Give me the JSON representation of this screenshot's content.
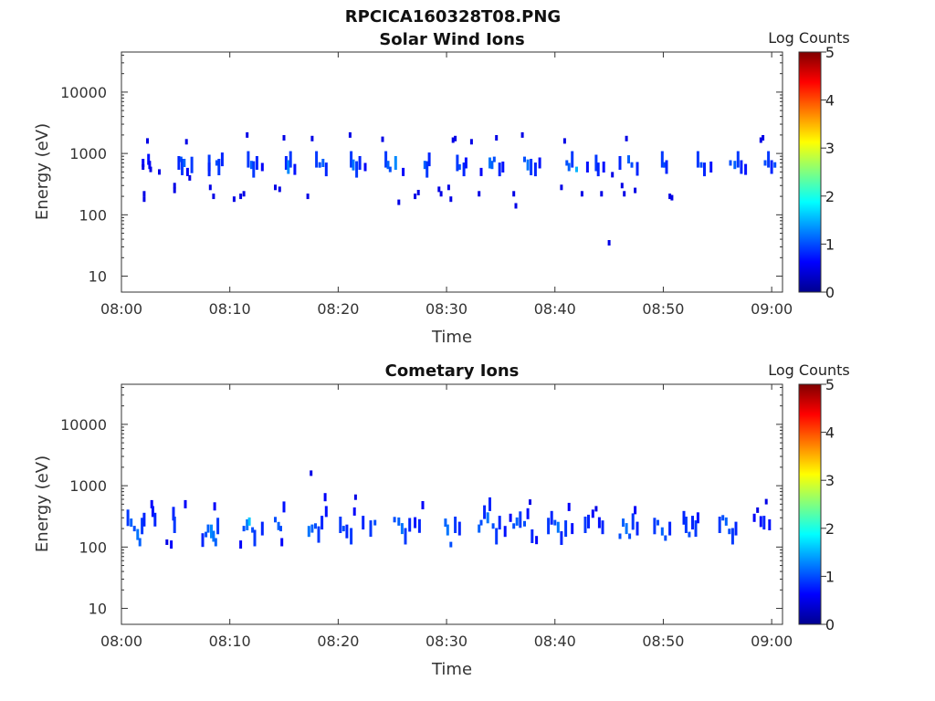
{
  "figure_title": "RPCICA160328T08.PNG",
  "chart_data": [
    {
      "type": "heatmap",
      "title": "Solar Wind Ions",
      "xlabel": "Time",
      "ylabel": "Energy (eV)",
      "x_ticks": [
        "08:00",
        "08:10",
        "08:20",
        "08:30",
        "08:40",
        "08:50",
        "09:00"
      ],
      "y_ticks": [
        "10",
        "100",
        "1000",
        "10000"
      ],
      "y_scale": "log",
      "xlim_minutes": [
        0,
        61
      ],
      "ylim": [
        5.5,
        45000
      ],
      "colorbar_label": "Log Counts",
      "colorbar_ticks": [
        "0",
        "1",
        "2",
        "3",
        "4",
        "5"
      ],
      "colorbar_range": [
        0,
        5
      ],
      "points": [
        [
          2.0,
          700,
          0.6
        ],
        [
          2.0,
          600,
          0.5
        ],
        [
          2.1,
          220,
          0.5
        ],
        [
          2.1,
          180,
          0.5
        ],
        [
          2.4,
          1600,
          0.5
        ],
        [
          2.5,
          800,
          0.7
        ],
        [
          2.6,
          650,
          0.6
        ],
        [
          2.7,
          550,
          0.5
        ],
        [
          3.5,
          500,
          0.5
        ],
        [
          4.9,
          300,
          0.5
        ],
        [
          4.9,
          250,
          0.5
        ],
        [
          5.3,
          700,
          0.8
        ],
        [
          5.5,
          800,
          1.0
        ],
        [
          5.6,
          600,
          0.9
        ],
        [
          5.8,
          700,
          1.1
        ],
        [
          6.0,
          1550,
          0.5
        ],
        [
          6.1,
          500,
          0.6
        ],
        [
          6.3,
          400,
          0.5
        ],
        [
          6.5,
          650,
          0.9
        ],
        [
          8.1,
          700,
          0.9
        ],
        [
          8.1,
          550,
          0.8
        ],
        [
          8.2,
          280,
          0.5
        ],
        [
          8.5,
          200,
          0.5
        ],
        [
          8.8,
          700,
          1.0
        ],
        [
          9.0,
          600,
          0.9
        ],
        [
          9.3,
          800,
          0.8
        ],
        [
          10.4,
          180,
          0.5
        ],
        [
          11.0,
          200,
          0.5
        ],
        [
          11.3,
          220,
          0.5
        ],
        [
          11.6,
          2000,
          0.5
        ],
        [
          11.7,
          800,
          0.9
        ],
        [
          12.0,
          650,
          1.1
        ],
        [
          12.2,
          550,
          0.9
        ],
        [
          12.5,
          700,
          0.8
        ],
        [
          13.0,
          600,
          0.6
        ],
        [
          14.2,
          280,
          0.5
        ],
        [
          14.6,
          260,
          0.5
        ],
        [
          15.0,
          1800,
          0.5
        ],
        [
          15.2,
          700,
          0.8
        ],
        [
          15.4,
          600,
          1.3
        ],
        [
          15.6,
          800,
          0.9
        ],
        [
          16.0,
          550,
          0.7
        ],
        [
          17.2,
          200,
          0.5
        ],
        [
          17.6,
          1750,
          0.5
        ],
        [
          18.0,
          800,
          0.9
        ],
        [
          18.3,
          650,
          1.0
        ],
        [
          18.6,
          700,
          1.1
        ],
        [
          18.9,
          550,
          0.8
        ],
        [
          21.1,
          2000,
          0.5
        ],
        [
          21.2,
          800,
          0.9
        ],
        [
          21.4,
          650,
          1.2
        ],
        [
          21.7,
          550,
          0.9
        ],
        [
          22.0,
          700,
          0.8
        ],
        [
          22.5,
          600,
          0.6
        ],
        [
          24.1,
          1700,
          0.5
        ],
        [
          24.4,
          800,
          0.9
        ],
        [
          24.6,
          650,
          1.1
        ],
        [
          24.8,
          550,
          1.0
        ],
        [
          25.3,
          700,
          1.3
        ],
        [
          25.6,
          160,
          0.5
        ],
        [
          26.0,
          500,
          0.6
        ],
        [
          27.1,
          200,
          0.5
        ],
        [
          27.4,
          230,
          0.5
        ],
        [
          28.0,
          650,
          1.1
        ],
        [
          28.2,
          550,
          0.9
        ],
        [
          28.4,
          800,
          0.8
        ],
        [
          29.3,
          260,
          0.5
        ],
        [
          29.5,
          220,
          0.5
        ],
        [
          30.2,
          280,
          0.5
        ],
        [
          30.4,
          180,
          0.5
        ],
        [
          30.6,
          1650,
          0.5
        ],
        [
          30.8,
          1750,
          0.5
        ],
        [
          31.0,
          700,
          0.9
        ],
        [
          31.2,
          600,
          1.0
        ],
        [
          31.6,
          550,
          0.8
        ],
        [
          31.8,
          700,
          0.7
        ],
        [
          32.3,
          1550,
          0.5
        ],
        [
          33.0,
          220,
          0.5
        ],
        [
          33.2,
          500,
          0.6
        ],
        [
          34.0,
          700,
          1.2
        ],
        [
          34.2,
          650,
          1.1
        ],
        [
          34.4,
          800,
          1.0
        ],
        [
          34.6,
          1800,
          0.5
        ],
        [
          34.9,
          550,
          0.8
        ],
        [
          35.2,
          600,
          0.7
        ],
        [
          36.2,
          220,
          0.5
        ],
        [
          36.4,
          140,
          0.5
        ],
        [
          37.0,
          2000,
          0.5
        ],
        [
          37.2,
          800,
          1.0
        ],
        [
          37.5,
          650,
          1.2
        ],
        [
          37.8,
          600,
          0.9
        ],
        [
          38.2,
          550,
          0.8
        ],
        [
          38.6,
          700,
          0.7
        ],
        [
          40.6,
          280,
          0.5
        ],
        [
          40.9,
          1600,
          0.5
        ],
        [
          41.1,
          700,
          1.0
        ],
        [
          41.3,
          600,
          1.1
        ],
        [
          41.6,
          800,
          0.9
        ],
        [
          42.0,
          550,
          1.5
        ],
        [
          42.5,
          220,
          0.5
        ],
        [
          43.0,
          600,
          0.7
        ],
        [
          43.8,
          700,
          0.9
        ],
        [
          44.0,
          550,
          0.8
        ],
        [
          44.3,
          220,
          0.5
        ],
        [
          44.5,
          600,
          0.7
        ],
        [
          45.0,
          35,
          0.5
        ],
        [
          45.3,
          450,
          0.5
        ],
        [
          46.0,
          700,
          0.8
        ],
        [
          46.2,
          300,
          0.5
        ],
        [
          46.4,
          220,
          0.5
        ],
        [
          46.6,
          1750,
          0.5
        ],
        [
          46.8,
          800,
          1.1
        ],
        [
          47.1,
          650,
          1.0
        ],
        [
          47.4,
          250,
          0.5
        ],
        [
          47.6,
          560,
          0.8
        ],
        [
          49.9,
          800,
          0.9
        ],
        [
          50.1,
          650,
          1.0
        ],
        [
          50.3,
          600,
          0.8
        ],
        [
          50.6,
          200,
          0.5
        ],
        [
          50.8,
          190,
          0.5
        ],
        [
          53.2,
          800,
          0.9
        ],
        [
          53.5,
          650,
          1.0
        ],
        [
          53.8,
          550,
          0.8
        ],
        [
          54.4,
          600,
          0.7
        ],
        [
          56.2,
          700,
          1.0
        ],
        [
          56.6,
          650,
          1.1
        ],
        [
          56.9,
          800,
          0.9
        ],
        [
          57.2,
          600,
          0.8
        ],
        [
          57.6,
          550,
          0.7
        ],
        [
          59.0,
          1650,
          0.5
        ],
        [
          59.2,
          1800,
          0.5
        ],
        [
          59.4,
          700,
          1.0
        ],
        [
          59.7,
          800,
          0.9
        ],
        [
          60.0,
          600,
          0.8
        ],
        [
          60.3,
          650,
          1.0
        ]
      ]
    },
    {
      "type": "heatmap",
      "title": "Cometary Ions",
      "xlabel": "Time",
      "ylabel": "Energy (eV)",
      "x_ticks": [
        "08:00",
        "08:10",
        "08:20",
        "08:30",
        "08:40",
        "08:50",
        "09:00"
      ],
      "y_ticks": [
        "10",
        "100",
        "1000",
        "10000"
      ],
      "y_scale": "log",
      "xlim_minutes": [
        0,
        61
      ],
      "ylim": [
        5.5,
        45000
      ],
      "colorbar_label": "Log Counts",
      "colorbar_ticks": [
        "0",
        "1",
        "2",
        "3",
        "4",
        "5"
      ],
      "colorbar_range": [
        0,
        5
      ],
      "points": [
        [
          0.6,
          300,
          0.9
        ],
        [
          0.9,
          250,
          1.1
        ],
        [
          1.2,
          200,
          1.0
        ],
        [
          1.5,
          160,
          1.2
        ],
        [
          1.7,
          120,
          1.1
        ],
        [
          1.9,
          220,
          0.9
        ],
        [
          2.1,
          280,
          0.8
        ],
        [
          2.8,
          500,
          0.6
        ],
        [
          2.9,
          380,
          0.7
        ],
        [
          3.1,
          280,
          0.8
        ],
        [
          4.2,
          120,
          0.5
        ],
        [
          4.6,
          110,
          0.6
        ],
        [
          4.8,
          350,
          0.8
        ],
        [
          4.9,
          230,
          0.9
        ],
        [
          5.9,
          500,
          0.6
        ],
        [
          7.5,
          130,
          0.8
        ],
        [
          7.8,
          160,
          1.0
        ],
        [
          8.0,
          200,
          1.1
        ],
        [
          8.3,
          180,
          1.3
        ],
        [
          8.5,
          150,
          1.2
        ],
        [
          8.7,
          120,
          1.1
        ],
        [
          8.9,
          220,
          0.9
        ],
        [
          8.6,
          460,
          0.6
        ],
        [
          11.0,
          110,
          0.6
        ],
        [
          11.3,
          200,
          1.0
        ],
        [
          11.6,
          230,
          1.2
        ],
        [
          11.8,
          260,
          1.6
        ],
        [
          12.1,
          190,
          1.0
        ],
        [
          12.3,
          140,
          0.9
        ],
        [
          13.0,
          200,
          0.8
        ],
        [
          14.2,
          280,
          1.0
        ],
        [
          14.5,
          220,
          1.1
        ],
        [
          14.7,
          200,
          1.0
        ],
        [
          14.8,
          120,
          0.6
        ],
        [
          15.0,
          450,
          0.7
        ],
        [
          17.3,
          180,
          1.2
        ],
        [
          17.5,
          1600,
          0.5
        ],
        [
          17.6,
          200,
          1.1
        ],
        [
          17.9,
          220,
          1.0
        ],
        [
          18.2,
          160,
          0.9
        ],
        [
          18.5,
          250,
          0.8
        ],
        [
          18.8,
          650,
          0.6
        ],
        [
          18.9,
          380,
          0.7
        ],
        [
          20.2,
          230,
          0.9
        ],
        [
          20.5,
          200,
          1.0
        ],
        [
          20.8,
          180,
          0.8
        ],
        [
          21.2,
          150,
          0.9
        ],
        [
          21.5,
          380,
          0.6
        ],
        [
          21.6,
          650,
          0.5
        ],
        [
          22.3,
          250,
          0.8
        ],
        [
          23.0,
          200,
          0.9
        ],
        [
          23.4,
          250,
          1.0
        ],
        [
          25.2,
          280,
          1.0
        ],
        [
          25.6,
          260,
          1.1
        ],
        [
          25.9,
          200,
          1.2
        ],
        [
          26.2,
          150,
          0.9
        ],
        [
          26.6,
          230,
          0.8
        ],
        [
          27.1,
          250,
          0.7
        ],
        [
          27.5,
          220,
          0.8
        ],
        [
          27.8,
          480,
          0.6
        ],
        [
          29.9,
          250,
          1.1
        ],
        [
          30.1,
          190,
          1.2
        ],
        [
          30.4,
          110,
          1.0
        ],
        [
          30.8,
          230,
          0.9
        ],
        [
          31.2,
          200,
          0.8
        ],
        [
          33.0,
          200,
          1.1
        ],
        [
          33.2,
          250,
          1.0
        ],
        [
          33.5,
          370,
          0.8
        ],
        [
          33.8,
          300,
          1.2
        ],
        [
          34.0,
          500,
          0.8
        ],
        [
          34.3,
          220,
          1.0
        ],
        [
          34.6,
          150,
          0.9
        ],
        [
          34.9,
          250,
          0.8
        ],
        [
          35.4,
          180,
          0.7
        ],
        [
          35.9,
          300,
          0.6
        ],
        [
          36.2,
          220,
          1.0
        ],
        [
          36.5,
          260,
          1.1
        ],
        [
          36.8,
          280,
          0.9
        ],
        [
          37.2,
          240,
          1.0
        ],
        [
          37.5,
          350,
          0.7
        ],
        [
          37.7,
          540,
          0.5
        ],
        [
          37.9,
          150,
          0.8
        ],
        [
          38.3,
          130,
          0.6
        ],
        [
          39.4,
          220,
          0.9
        ],
        [
          39.7,
          300,
          0.8
        ],
        [
          40.0,
          250,
          1.0
        ],
        [
          40.3,
          210,
          1.2
        ],
        [
          40.6,
          140,
          0.8
        ],
        [
          41.0,
          200,
          0.9
        ],
        [
          41.3,
          450,
          0.6
        ],
        [
          41.6,
          200,
          0.7
        ],
        [
          42.8,
          230,
          0.9
        ],
        [
          43.1,
          260,
          0.8
        ],
        [
          43.5,
          350,
          0.6
        ],
        [
          43.8,
          420,
          0.5
        ],
        [
          44.1,
          250,
          0.7
        ],
        [
          44.4,
          210,
          0.8
        ],
        [
          46.0,
          150,
          1.0
        ],
        [
          46.3,
          250,
          1.1
        ],
        [
          46.6,
          200,
          1.2
        ],
        [
          46.9,
          150,
          1.0
        ],
        [
          47.2,
          260,
          0.9
        ],
        [
          47.4,
          400,
          0.6
        ],
        [
          47.6,
          200,
          0.8
        ],
        [
          49.2,
          220,
          0.9
        ],
        [
          49.5,
          250,
          1.0
        ],
        [
          49.9,
          180,
          1.1
        ],
        [
          50.2,
          140,
          1.0
        ],
        [
          50.6,
          200,
          0.8
        ],
        [
          51.9,
          300,
          0.8
        ],
        [
          52.1,
          230,
          0.9
        ],
        [
          52.4,
          160,
          1.0
        ],
        [
          52.7,
          250,
          0.8
        ],
        [
          53.0,
          200,
          0.9
        ],
        [
          53.2,
          300,
          0.7
        ],
        [
          55.2,
          230,
          0.9
        ],
        [
          55.5,
          300,
          1.0
        ],
        [
          55.8,
          260,
          1.1
        ],
        [
          56.1,
          180,
          1.0
        ],
        [
          56.4,
          150,
          0.9
        ],
        [
          56.7,
          200,
          0.8
        ],
        [
          58.4,
          300,
          0.6
        ],
        [
          58.7,
          400,
          0.5
        ],
        [
          59.0,
          260,
          0.7
        ],
        [
          59.3,
          250,
          0.8
        ],
        [
          59.5,
          550,
          0.5
        ],
        [
          59.8,
          230,
          0.7
        ]
      ]
    }
  ]
}
